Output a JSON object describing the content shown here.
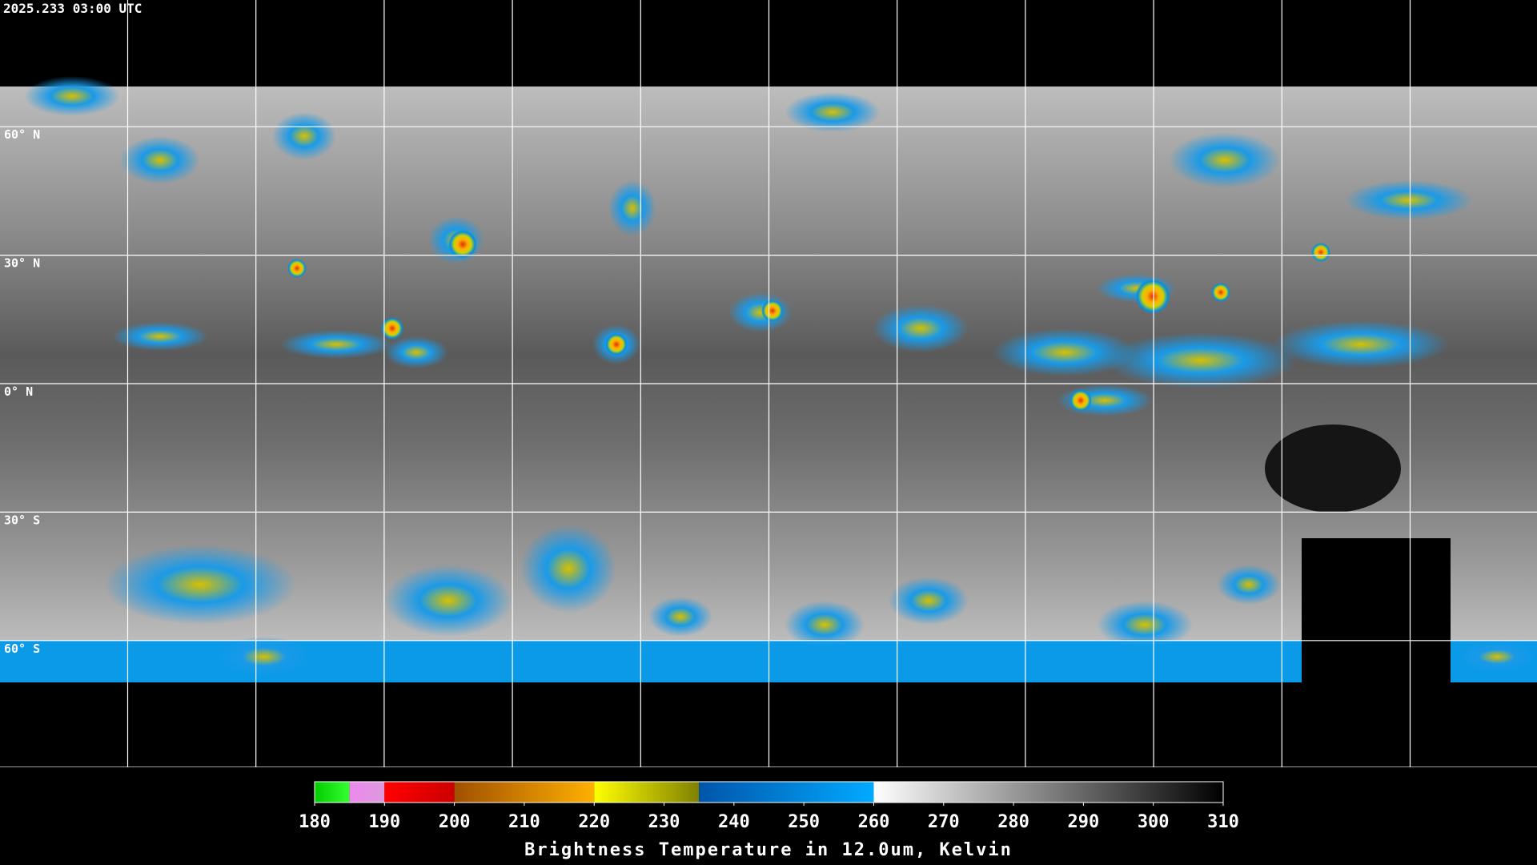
{
  "header": {
    "timestamp": "2025.233 03:00 UTC"
  },
  "map": {
    "lat_lines": [
      {
        "value": 60,
        "label": "60° N"
      },
      {
        "value": 30,
        "label": "30° N"
      },
      {
        "value": 0,
        "label": "0° N"
      },
      {
        "value": -30,
        "label": "30° S"
      },
      {
        "value": -60,
        "label": "60° S"
      }
    ]
  },
  "colorbar": {
    "range": [
      180,
      310
    ],
    "ticks": [
      180,
      190,
      200,
      210,
      220,
      230,
      240,
      250,
      260,
      270,
      280,
      290,
      300,
      310
    ],
    "segments": [
      {
        "from": 180,
        "to": 185,
        "colors": [
          "#00cc00",
          "#33ff33"
        ]
      },
      {
        "from": 185,
        "to": 190,
        "colors": [
          "#ee88ee",
          "#dd99dd"
        ]
      },
      {
        "from": 190,
        "to": 200,
        "colors": [
          "#ff0000",
          "#cc0000"
        ]
      },
      {
        "from": 200,
        "to": 220,
        "colors": [
          "#a05000",
          "#ffb000"
        ]
      },
      {
        "from": 220,
        "to": 235,
        "colors": [
          "#ffff00",
          "#808000"
        ]
      },
      {
        "from": 235,
        "to": 260,
        "colors": [
          "#0055aa",
          "#00aaff"
        ]
      },
      {
        "from": 260,
        "to": 310,
        "colors": [
          "#ffffff",
          "#000000"
        ]
      }
    ],
    "label": "Brightness Temperature in 12.0um, Kelvin"
  }
}
